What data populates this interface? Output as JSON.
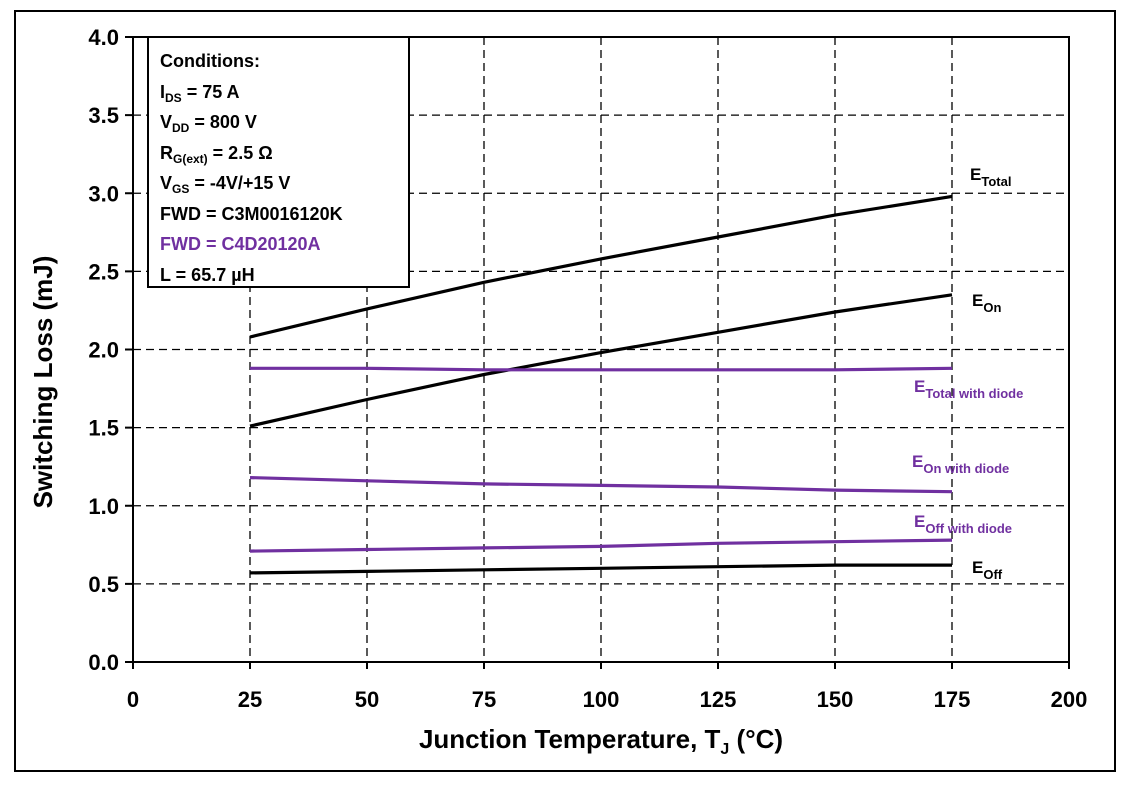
{
  "chart_data": {
    "type": "line",
    "xlabel": "Junction Temperature, T",
    "xlabel_sub": "J",
    "xlabel_unit": " (°C)",
    "ylabel": "Switching Loss (mJ)",
    "xlim": [
      0,
      200
    ],
    "ylim": [
      0.0,
      4.0
    ],
    "x_ticks": [
      "0",
      "25",
      "50",
      "75",
      "100",
      "125",
      "150",
      "175",
      "200"
    ],
    "y_ticks": [
      "0.0",
      "0.5",
      "1.0",
      "1.5",
      "2.0",
      "2.5",
      "3.0",
      "3.5",
      "4.0"
    ],
    "grid": true,
    "series": [
      {
        "name": "E",
        "name_sub": "Total",
        "color": "#000000",
        "x": [
          25,
          50,
          75,
          100,
          125,
          150,
          175
        ],
        "y": [
          2.08,
          2.26,
          2.43,
          2.58,
          2.72,
          2.86,
          2.98
        ]
      },
      {
        "name": "E",
        "name_sub": "On",
        "color": "#000000",
        "x": [
          25,
          50,
          75,
          100,
          125,
          150,
          175
        ],
        "y": [
          1.51,
          1.68,
          1.84,
          1.98,
          2.11,
          2.24,
          2.35
        ]
      },
      {
        "name": "E",
        "name_sub": "Total with diode",
        "color": "#7030A0",
        "x": [
          25,
          50,
          75,
          100,
          125,
          150,
          175
        ],
        "y": [
          1.88,
          1.88,
          1.87,
          1.87,
          1.87,
          1.87,
          1.88
        ]
      },
      {
        "name": "E",
        "name_sub": "On with diode",
        "color": "#7030A0",
        "x": [
          25,
          50,
          75,
          100,
          125,
          150,
          175
        ],
        "y": [
          1.18,
          1.16,
          1.14,
          1.13,
          1.12,
          1.1,
          1.09
        ]
      },
      {
        "name": "E",
        "name_sub": "Off with diode",
        "color": "#7030A0",
        "x": [
          25,
          50,
          75,
          100,
          125,
          150,
          175
        ],
        "y": [
          0.71,
          0.72,
          0.73,
          0.74,
          0.76,
          0.77,
          0.78
        ]
      },
      {
        "name": "E",
        "name_sub": "Off",
        "color": "#000000",
        "x": [
          25,
          50,
          75,
          100,
          125,
          150,
          175
        ],
        "y": [
          0.57,
          0.58,
          0.59,
          0.6,
          0.61,
          0.62,
          0.62
        ]
      }
    ]
  },
  "conditions": {
    "title": "Conditions:",
    "ids": {
      "main": "I",
      "sub": "DS",
      "rest": " = 75 A"
    },
    "vdd": {
      "main": "V",
      "sub": "DD",
      "rest": " = 800 V"
    },
    "rg": {
      "main": "R",
      "sub": "G(ext)",
      "rest": " = 2.5 Ω"
    },
    "vgs": {
      "main": "V",
      "sub": "GS",
      "rest": " = -4V/+15 V"
    },
    "fwd1": "FWD = C3M0016120K",
    "fwd2": "FWD = C4D20120A",
    "fwd2_color": "#7030A0",
    "inductance": "L = 65.7 µH"
  }
}
